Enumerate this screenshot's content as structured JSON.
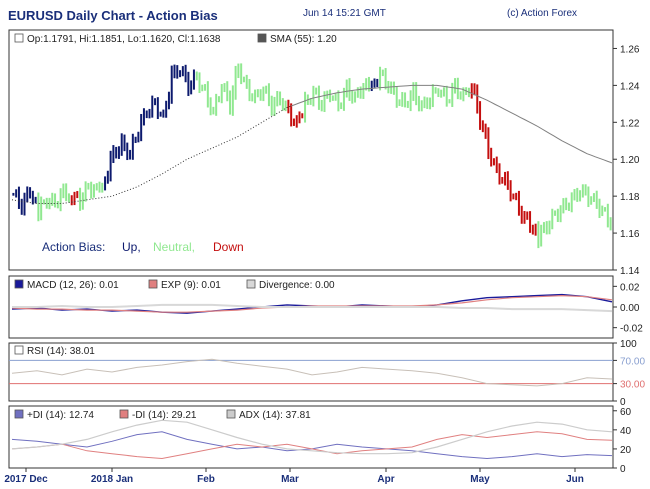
{
  "header": {
    "title": "EURUSD Daily Chart - Action Bias",
    "timestamp": "Jun 14 15:21 GMT",
    "credit": "(c) Action Forex"
  },
  "colors": {
    "up": "#0d1a6e",
    "neutral": "#90e890",
    "down": "#c40e0e",
    "sma": "#808080",
    "macd": "#1a1a9a",
    "exp": "#e08080",
    "divergence": "#d8d8d8",
    "rsi": "#c8c0b8",
    "di_plus": "#7070c0",
    "di_minus": "#e08080",
    "adx": "#cccccc",
    "level_hi": "#8aa0d0",
    "level_lo": "#e07070"
  },
  "chart_data": [
    {
      "type": "candlestick",
      "panel": "price",
      "legend": {
        "ohlc": "Op:1.1791, Hi:1.1851, Lo:1.1620, Cl:1.1638",
        "sma": "SMA (55): 1.20"
      },
      "bias_legend": {
        "label": "Action Bias:",
        "up": "Up,",
        "neutral": "Neutral,",
        "down": "Down"
      },
      "y_ticks": [
        "1.26",
        "1.24",
        "1.22",
        "1.20",
        "1.18",
        "1.16",
        "1.14"
      ],
      "ylim": [
        1.14,
        1.27
      ],
      "x_ticks": [
        "2017 Dec",
        "2018 Jan",
        "Feb",
        "Mar",
        "Apr",
        "May",
        "Jun"
      ],
      "bias_segments": [
        {
          "bias": "up",
          "close_path": [
            1.181,
            1.175,
            1.183,
            1.172
          ]
        },
        {
          "bias": "neutral",
          "close_path": [
            1.172,
            1.178,
            1.176,
            1.182,
            1.18
          ]
        },
        {
          "bias": "down",
          "close_path": [
            1.18,
            1.178
          ]
        },
        {
          "bias": "neutral",
          "close_path": [
            1.178,
            1.185,
            1.183,
            1.19
          ]
        },
        {
          "bias": "up",
          "close_path": [
            1.19,
            1.203,
            1.208,
            1.203,
            1.216,
            1.226,
            1.23,
            1.222,
            1.245,
            1.249,
            1.24,
            1.244
          ]
        },
        {
          "bias": "neutral",
          "close_path": [
            1.244,
            1.236,
            1.225,
            1.24,
            1.23,
            1.25,
            1.238,
            1.233,
            1.238,
            1.229,
            1.233,
            1.225
          ]
        },
        {
          "bias": "down",
          "close_path": [
            1.225,
            1.219,
            1.23
          ]
        },
        {
          "bias": "neutral",
          "close_path": [
            1.23,
            1.236,
            1.23,
            1.236,
            1.229,
            1.238,
            1.233,
            1.24,
            1.238
          ]
        },
        {
          "bias": "up",
          "close_path": [
            1.238,
            1.246
          ]
        },
        {
          "bias": "neutral",
          "close_path": [
            1.246,
            1.24,
            1.233,
            1.23,
            1.236,
            1.228,
            1.233,
            1.238,
            1.232,
            1.239,
            1.234,
            1.24
          ]
        },
        {
          "bias": "down",
          "close_path": [
            1.24,
            1.222,
            1.205,
            1.193,
            1.188,
            1.18,
            1.17,
            1.165,
            1.158
          ]
        },
        {
          "bias": "neutral",
          "close_path": [
            1.158,
            1.164,
            1.17,
            1.174,
            1.178,
            1.183,
            1.18,
            1.176,
            1.17,
            1.164
          ]
        }
      ],
      "sma_path": [
        1.178,
        1.176,
        1.176,
        1.178,
        1.18,
        1.185,
        1.192,
        1.2,
        1.206,
        1.212,
        1.22,
        1.228,
        1.233,
        1.236,
        1.238,
        1.239,
        1.24,
        1.24,
        1.238,
        1.232,
        1.225,
        1.218,
        1.21,
        1.203,
        1.198
      ]
    },
    {
      "type": "line",
      "panel": "macd",
      "legend": [
        {
          "key": "macd",
          "label": "MACD (12, 26): 0.01"
        },
        {
          "key": "exp",
          "label": "EXP (9): 0.01"
        },
        {
          "key": "divergence",
          "label": "Divergence: 0.00"
        }
      ],
      "y_ticks": [
        "0.02",
        "0.00",
        "-0.02"
      ],
      "ylim": [
        -0.03,
        0.03
      ],
      "series": [
        {
          "key": "macd",
          "values": [
            -0.002,
            -0.001,
            -0.003,
            -0.002,
            -0.004,
            -0.003,
            -0.005,
            -0.006,
            -0.004,
            -0.002,
            0.0,
            0.002,
            0.001,
            0.0,
            0.002,
            0.001,
            0.0,
            0.002,
            0.006,
            0.009,
            0.01,
            0.011,
            0.012,
            0.01,
            0.005
          ]
        },
        {
          "key": "exp",
          "values": [
            -0.001,
            -0.002,
            -0.002,
            -0.003,
            -0.003,
            -0.004,
            -0.005,
            -0.005,
            -0.004,
            -0.003,
            -0.001,
            0.0,
            0.001,
            0.001,
            0.001,
            0.001,
            0.001,
            0.002,
            0.004,
            0.007,
            0.009,
            0.01,
            0.011,
            0.01,
            0.007
          ]
        },
        {
          "key": "divergence",
          "values": [
            0.0,
            0.0,
            0.001,
            0.0,
            0.0,
            0.001,
            0.002,
            0.002,
            0.002,
            0.001,
            0.0,
            0.0,
            0.0,
            0.0,
            0.0,
            0.0,
            0.0,
            0.0,
            -0.001,
            -0.001,
            -0.002,
            -0.002,
            -0.002,
            -0.003,
            -0.004
          ]
        }
      ]
    },
    {
      "type": "line",
      "panel": "rsi",
      "legend": [
        {
          "key": "rsi",
          "label": "RSI (14): 38.01"
        }
      ],
      "y_ticks": [
        "100",
        "70.00",
        "30.00",
        "0"
      ],
      "ylim": [
        0,
        100
      ],
      "levels": [
        70,
        30
      ],
      "series": [
        {
          "key": "rsi",
          "values": [
            48,
            52,
            45,
            55,
            50,
            58,
            62,
            68,
            72,
            65,
            60,
            55,
            45,
            50,
            58,
            55,
            52,
            48,
            40,
            30,
            28,
            26,
            30,
            40,
            38
          ]
        }
      ]
    },
    {
      "type": "line",
      "panel": "dmi",
      "legend": [
        {
          "key": "di_plus",
          "label": "+DI (14): 12.74"
        },
        {
          "key": "di_minus",
          "label": "-DI (14): 29.21"
        },
        {
          "key": "adx",
          "label": "ADX (14): 37.81"
        }
      ],
      "y_ticks": [
        "60",
        "40",
        "20",
        "0"
      ],
      "ylim": [
        0,
        65
      ],
      "series": [
        {
          "key": "di_plus",
          "values": [
            30,
            28,
            25,
            22,
            28,
            35,
            38,
            30,
            25,
            20,
            22,
            18,
            20,
            25,
            22,
            20,
            18,
            15,
            12,
            10,
            12,
            15,
            12,
            14,
            13
          ]
        },
        {
          "key": "di_minus",
          "values": [
            20,
            22,
            25,
            18,
            15,
            12,
            10,
            15,
            20,
            25,
            22,
            25,
            20,
            15,
            18,
            20,
            22,
            30,
            35,
            32,
            35,
            38,
            36,
            30,
            29
          ]
        },
        {
          "key": "adx",
          "values": [
            20,
            22,
            25,
            30,
            38,
            45,
            50,
            48,
            40,
            32,
            25,
            20,
            18,
            16,
            15,
            15,
            16,
            22,
            30,
            38,
            44,
            48,
            46,
            40,
            38
          ]
        }
      ]
    }
  ]
}
